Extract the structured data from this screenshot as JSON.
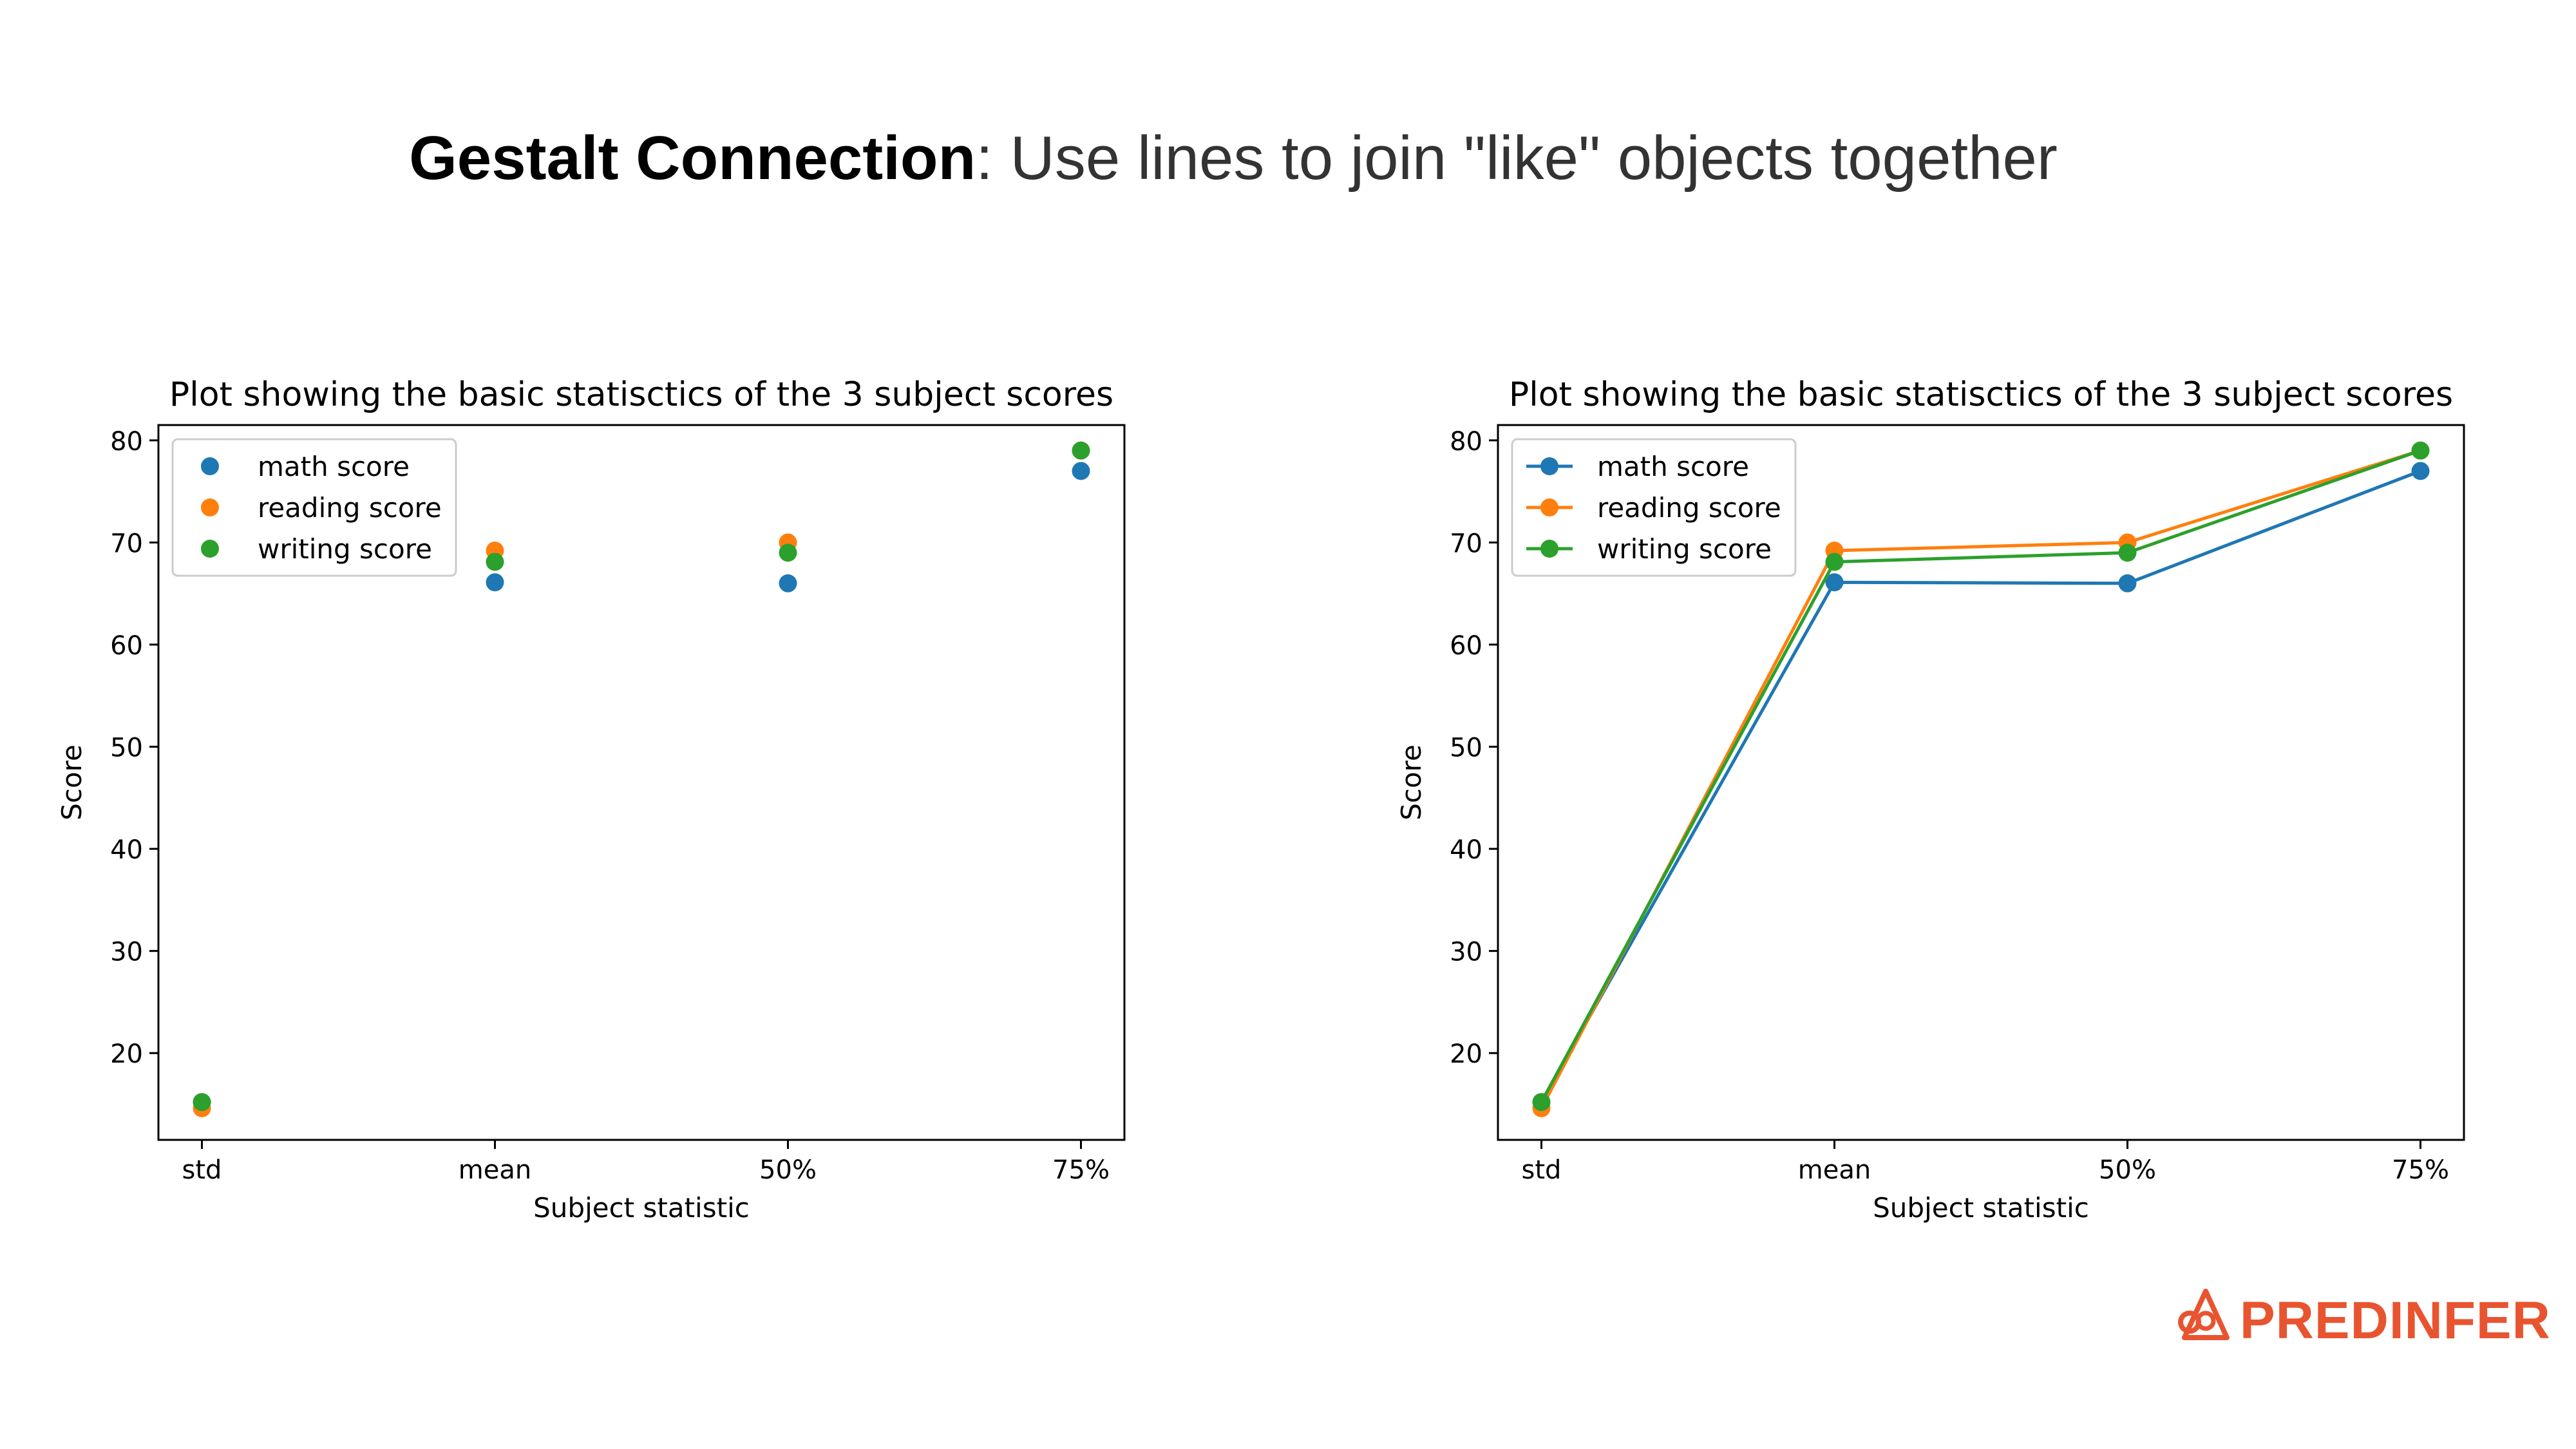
{
  "slide": {
    "title_bold": "Gestalt Connection",
    "title_rest": ": Use lines to join \"like\" objects together"
  },
  "brand": {
    "name": "PREDINFER",
    "color": "#e8542f"
  },
  "chart_data": [
    {
      "type": "scatter",
      "title": "Plot showing the basic statisctics of the 3 subject scores",
      "xlabel": "Subject statistic",
      "ylabel": "Score",
      "categories": [
        "std",
        "mean",
        "50%",
        "75%"
      ],
      "yticks": [
        20,
        30,
        40,
        50,
        60,
        70,
        80
      ],
      "ylim": [
        11.5,
        81.5
      ],
      "grid": false,
      "legend": "top-left",
      "markers": true,
      "lines": false,
      "series": [
        {
          "name": "math score",
          "color": "#1f77b4",
          "values": [
            15.2,
            66.1,
            66,
            77
          ]
        },
        {
          "name": "reading score",
          "color": "#ff7f0e",
          "values": [
            14.6,
            69.2,
            70,
            79
          ]
        },
        {
          "name": "writing score",
          "color": "#2ca02c",
          "values": [
            15.2,
            68.1,
            69,
            79
          ]
        }
      ]
    },
    {
      "type": "line",
      "title": "Plot showing the basic statisctics of the 3 subject scores",
      "xlabel": "Subject statistic",
      "ylabel": "Score",
      "categories": [
        "std",
        "mean",
        "50%",
        "75%"
      ],
      "yticks": [
        20,
        30,
        40,
        50,
        60,
        70,
        80
      ],
      "ylim": [
        11.5,
        81.5
      ],
      "grid": false,
      "legend": "top-left",
      "markers": true,
      "lines": true,
      "series": [
        {
          "name": "math score",
          "color": "#1f77b4",
          "values": [
            15.2,
            66.1,
            66,
            77
          ]
        },
        {
          "name": "reading score",
          "color": "#ff7f0e",
          "values": [
            14.6,
            69.2,
            70,
            79
          ]
        },
        {
          "name": "writing score",
          "color": "#2ca02c",
          "values": [
            15.2,
            68.1,
            69,
            79
          ]
        }
      ]
    }
  ]
}
